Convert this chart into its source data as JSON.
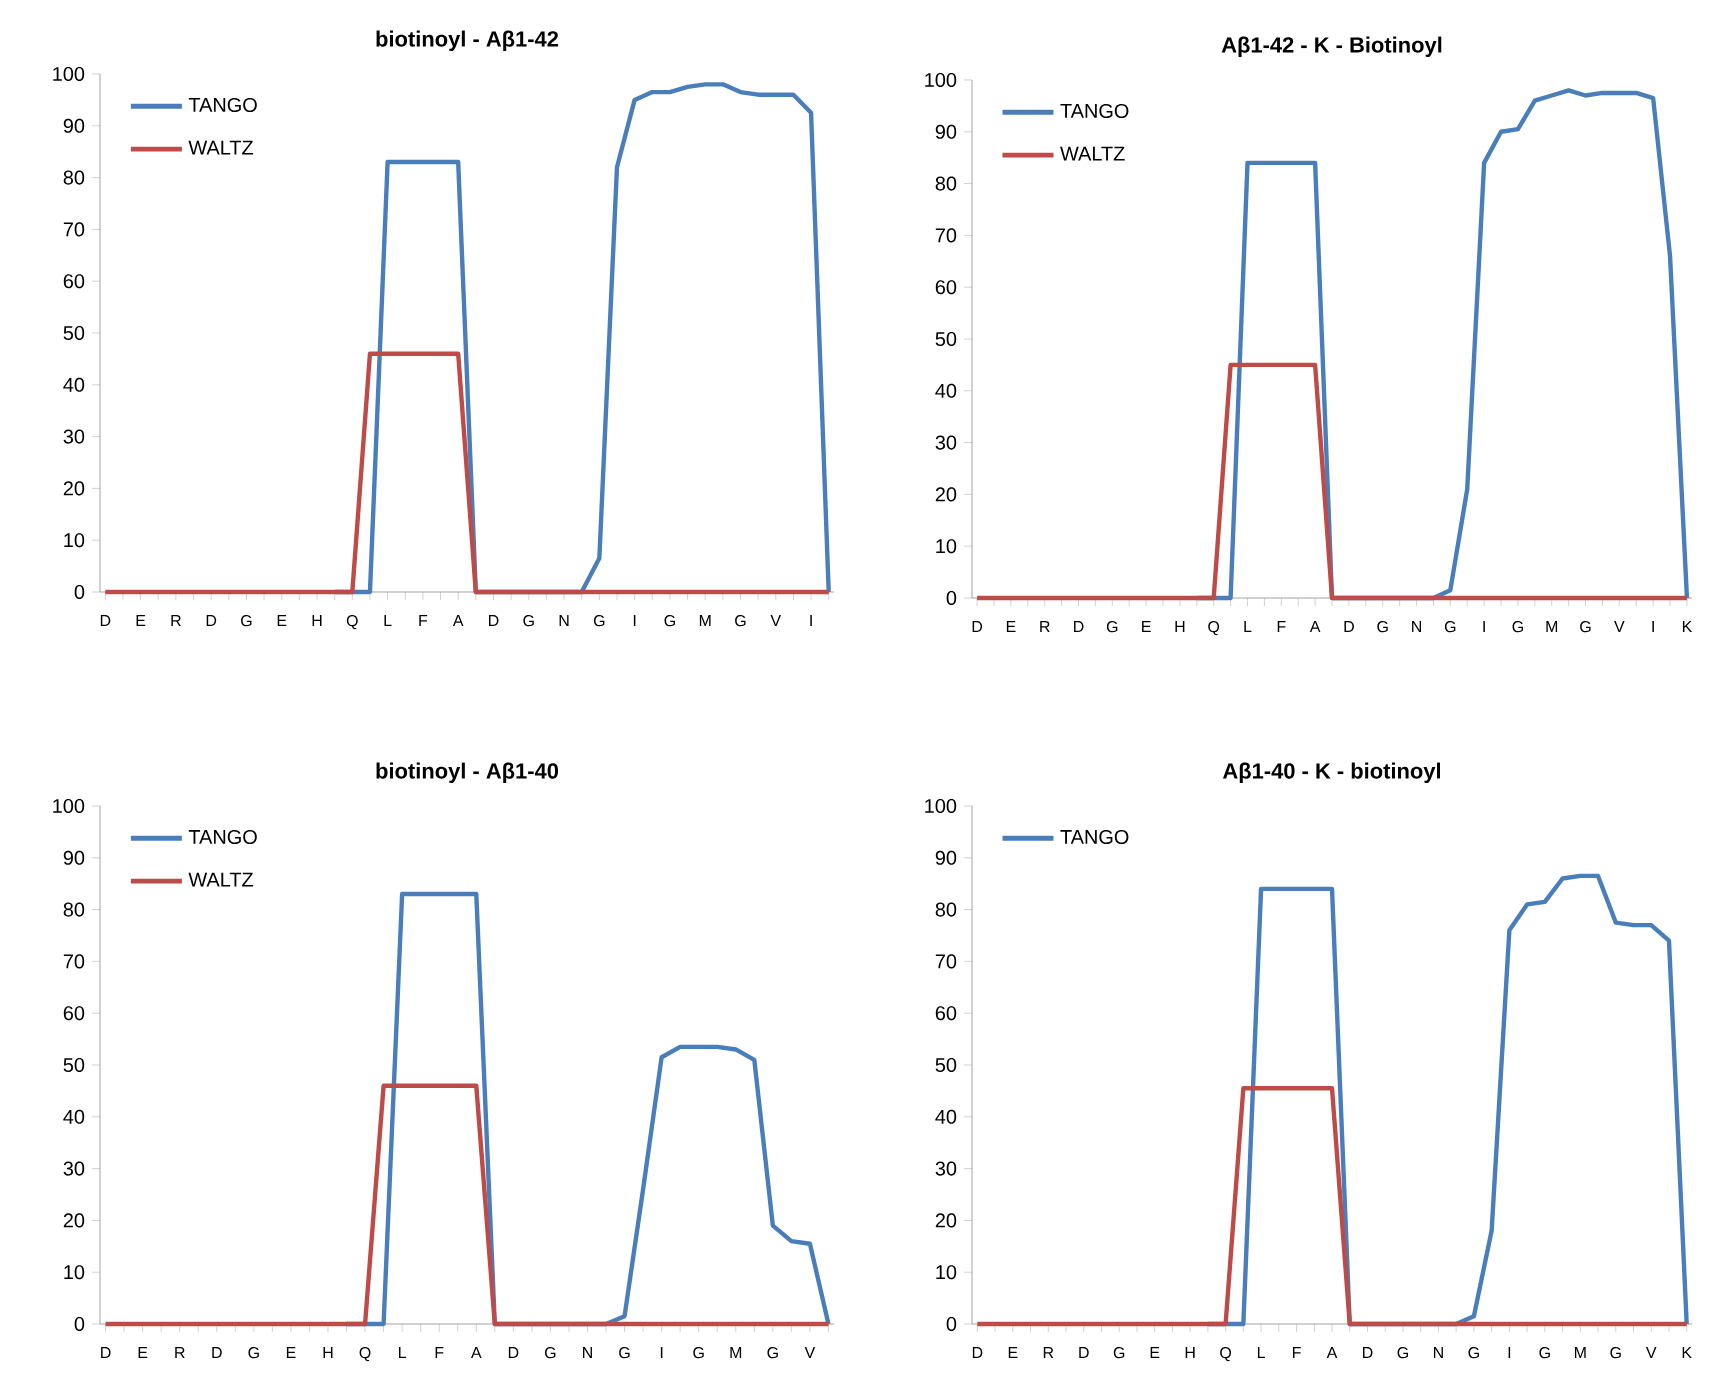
{
  "chart_data": [
    {
      "type": "line",
      "title": "biotinoyl - Aβ1-42",
      "categories": [
        "D",
        null,
        "E",
        null,
        "R",
        null,
        "D",
        null,
        "G",
        null,
        "E",
        null,
        "H",
        null,
        "Q",
        null,
        "L",
        null,
        "F",
        null,
        "A",
        null,
        "D",
        null,
        "G",
        null,
        "N",
        null,
        "G",
        null,
        "I",
        null,
        "G",
        null,
        "M",
        null,
        "G",
        null,
        "V",
        null,
        "I",
        null
      ],
      "ylim": [
        0,
        100
      ],
      "yticks": [
        0,
        10,
        20,
        30,
        40,
        50,
        60,
        70,
        80,
        90,
        100
      ],
      "legend": "top left",
      "grid": false,
      "series": [
        {
          "name": "TANGO",
          "color": "#4a7ebb",
          "values": [
            null,
            null,
            null,
            null,
            null,
            null,
            null,
            null,
            null,
            null,
            null,
            null,
            null,
            0,
            0,
            0,
            83,
            83,
            83,
            83,
            83,
            0,
            0,
            0,
            0,
            0,
            0,
            0,
            6.5,
            82,
            95,
            96.5,
            96.5,
            97.5,
            98,
            98,
            96.5,
            96,
            96,
            96,
            92.5,
            0
          ]
        },
        {
          "name": "WALTZ",
          "color": "#be4b48",
          "values": [
            0,
            0,
            0,
            0,
            0,
            0,
            0,
            0,
            0,
            0,
            0,
            0,
            0,
            0,
            0,
            46,
            46,
            46,
            46,
            46,
            46,
            0,
            0,
            0,
            0,
            0,
            0,
            0,
            0,
            0,
            0,
            0,
            0,
            0,
            0,
            0,
            0,
            0,
            0,
            0,
            0,
            0
          ]
        }
      ]
    },
    {
      "type": "line",
      "title": "Aβ1-42 - K - Biotinoyl",
      "categories": [
        "D",
        null,
        "E",
        null,
        "R",
        null,
        "D",
        null,
        "G",
        null,
        "E",
        null,
        "H",
        null,
        "Q",
        null,
        "L",
        null,
        "F",
        null,
        "A",
        null,
        "D",
        null,
        "G",
        null,
        "N",
        null,
        "G",
        null,
        "I",
        null,
        "G",
        null,
        "M",
        null,
        "G",
        null,
        "V",
        null,
        "I",
        null,
        "K"
      ],
      "ylim": [
        0,
        100
      ],
      "yticks": [
        0,
        10,
        20,
        30,
        40,
        50,
        60,
        70,
        80,
        90,
        100
      ],
      "legend": "top left",
      "grid": false,
      "series": [
        {
          "name": "TANGO",
          "color": "#4a7ebb",
          "values": [
            null,
            null,
            null,
            null,
            null,
            null,
            null,
            null,
            null,
            null,
            null,
            null,
            null,
            0,
            0,
            0,
            84,
            84,
            84,
            84,
            84,
            0,
            0,
            0,
            0,
            0,
            0,
            0,
            1.5,
            21,
            84,
            90,
            90.5,
            96,
            97,
            98,
            97,
            97.5,
            97.5,
            97.5,
            96.5,
            66,
            0
          ]
        },
        {
          "name": "WALTZ",
          "color": "#be4b48",
          "values": [
            0,
            0,
            0,
            0,
            0,
            0,
            0,
            0,
            0,
            0,
            0,
            0,
            0,
            0,
            0,
            45,
            45,
            45,
            45,
            45,
            45,
            0,
            0,
            0,
            0,
            0,
            0,
            0,
            0,
            0,
            0,
            0,
            0,
            0,
            0,
            0,
            0,
            0,
            0,
            0,
            0,
            0,
            0
          ]
        }
      ]
    },
    {
      "type": "line",
      "title": "biotinoyl - Aβ1-40",
      "categories": [
        "D",
        null,
        "E",
        null,
        "R",
        null,
        "D",
        null,
        "G",
        null,
        "E",
        null,
        "H",
        null,
        "Q",
        null,
        "L",
        null,
        "F",
        null,
        "A",
        null,
        "D",
        null,
        "G",
        null,
        "N",
        null,
        "G",
        null,
        "I",
        null,
        "G",
        null,
        "M",
        null,
        "G",
        null,
        "V",
        null
      ],
      "ylim": [
        0,
        100
      ],
      "yticks": [
        0,
        10,
        20,
        30,
        40,
        50,
        60,
        70,
        80,
        90,
        100
      ],
      "legend": "top left",
      "grid": false,
      "series": [
        {
          "name": "TANGO",
          "color": "#4a7ebb",
          "values": [
            null,
            null,
            null,
            null,
            null,
            null,
            null,
            null,
            null,
            null,
            null,
            null,
            null,
            0,
            0,
            0,
            83,
            83,
            83,
            83,
            83,
            0,
            0,
            0,
            0,
            0,
            0,
            0,
            1.5,
            26,
            51.5,
            53.5,
            53.5,
            53.5,
            53,
            51,
            19,
            16,
            15.5,
            0
          ]
        },
        {
          "name": "WALTZ",
          "color": "#be4b48",
          "values": [
            0,
            0,
            0,
            0,
            0,
            0,
            0,
            0,
            0,
            0,
            0,
            0,
            0,
            0,
            0,
            46,
            46,
            46,
            46,
            46,
            46,
            0,
            0,
            0,
            0,
            0,
            0,
            0,
            0,
            0,
            0,
            0,
            0,
            0,
            0,
            0,
            0,
            0,
            0,
            0
          ]
        }
      ]
    },
    {
      "type": "line",
      "title": "Aβ1-40 - K - biotinoyl",
      "categories": [
        "D",
        null,
        "E",
        null,
        "R",
        null,
        "D",
        null,
        "G",
        null,
        "E",
        null,
        "H",
        null,
        "Q",
        null,
        "L",
        null,
        "F",
        null,
        "A",
        null,
        "D",
        null,
        "G",
        null,
        "N",
        null,
        "G",
        null,
        "I",
        null,
        "G",
        null,
        "M",
        null,
        "G",
        null,
        "V",
        null,
        "K"
      ],
      "ylim": [
        0,
        100
      ],
      "yticks": [
        0,
        10,
        20,
        30,
        40,
        50,
        60,
        70,
        80,
        90,
        100
      ],
      "legend": "top left",
      "grid": false,
      "series": [
        {
          "name": "TANGO",
          "color": "#4a7ebb",
          "values": [
            null,
            null,
            null,
            null,
            null,
            null,
            null,
            null,
            null,
            null,
            null,
            null,
            null,
            0,
            0,
            0,
            84,
            84,
            84,
            84,
            84,
            0,
            0,
            0,
            0,
            0,
            0,
            0,
            1.5,
            18,
            76,
            81,
            81.5,
            86,
            86.5,
            86.5,
            77.5,
            77,
            77,
            74,
            0
          ]
        },
        {
          "color": "#be4b48",
          "values": [
            0,
            0,
            0,
            0,
            0,
            0,
            0,
            0,
            0,
            0,
            0,
            0,
            0,
            0,
            0,
            45.5,
            45.5,
            45.5,
            45.5,
            45.5,
            45.5,
            0,
            0,
            0,
            0,
            0,
            0,
            0,
            0,
            0,
            0,
            0,
            0,
            0,
            0,
            0,
            0,
            0,
            0,
            0,
            0
          ]
        }
      ]
    }
  ]
}
